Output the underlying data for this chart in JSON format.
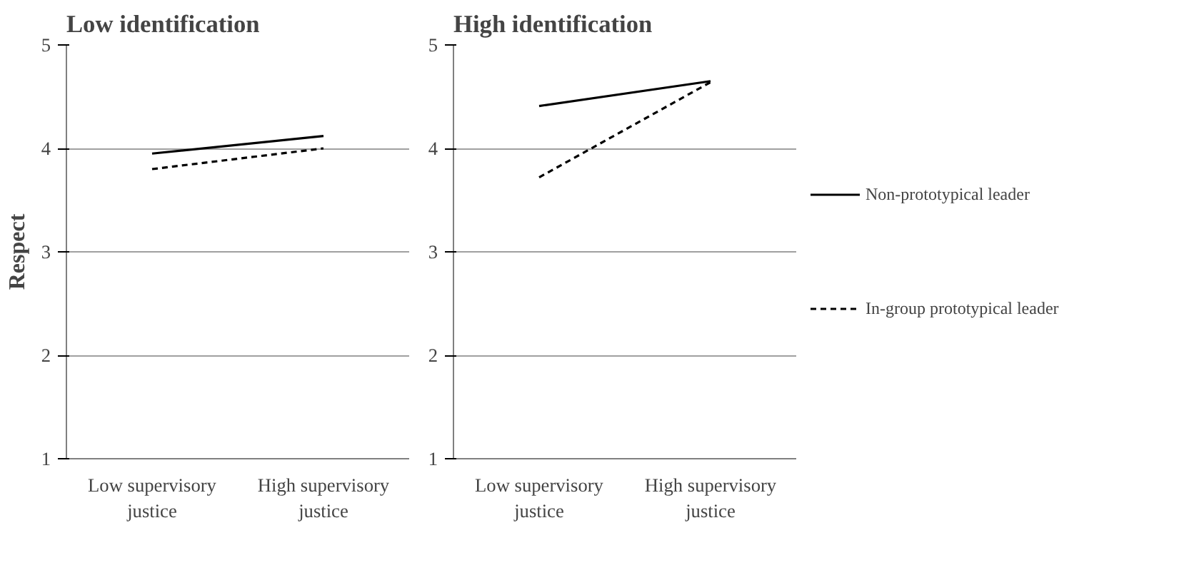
{
  "chart_data": [
    {
      "type": "line",
      "title": "Low identification",
      "ylabel": "Respect",
      "categories": [
        "Low supervisory justice",
        "High supervisory justice"
      ],
      "ylim": [
        1,
        5
      ],
      "yticks": [
        1,
        2,
        3,
        4,
        5
      ],
      "grid": "y",
      "legend": false,
      "series": [
        {
          "color": "#000000",
          "line_style": "solid",
          "values": [
            3.95,
            4.12
          ]
        },
        {
          "color": "#000000",
          "line_style": "dashed",
          "values": [
            3.8,
            4.0
          ]
        }
      ]
    },
    {
      "type": "line",
      "title": "High identification",
      "categories": [
        "Low supervisory justice",
        "High supervisory justice"
      ],
      "ylim": [
        1,
        5
      ],
      "yticks": [
        1,
        2,
        3,
        4,
        5
      ],
      "grid": "y",
      "legend": "right",
      "series": [
        {
          "name": "Non-prototypical leader",
          "color": "#000000",
          "line_style": "solid",
          "values": [
            4.41,
            4.65
          ]
        },
        {
          "name": "In-group prototypical leader",
          "color": "#000000",
          "line_style": "dashed",
          "values": [
            3.72,
            4.64
          ]
        }
      ]
    }
  ]
}
